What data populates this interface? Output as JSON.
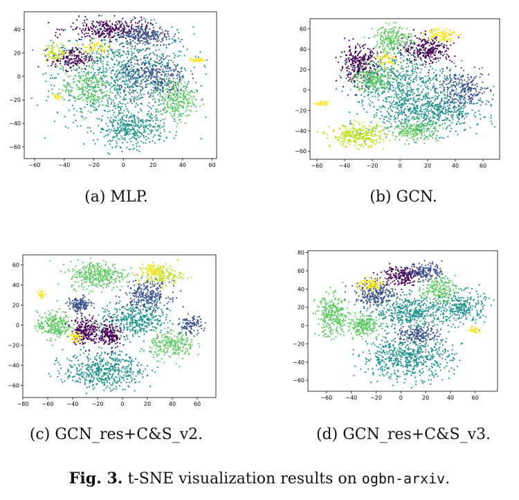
{
  "figure": {
    "number": "Fig. 3.",
    "text": " t-SNE visualization results on ",
    "dataset": "ogbn-arxiv",
    "end": "."
  },
  "palette": [
    "#440154",
    "#3b528b",
    "#21918c",
    "#5ec962",
    "#bddf26",
    "#fde725"
  ],
  "chart_data": [
    {
      "type": "scatter",
      "caption": "(a) MLP.",
      "xlim": [
        -67,
        63
      ],
      "ylim": [
        -70,
        55
      ],
      "xticks": [
        -60,
        -40,
        -20,
        0,
        20,
        40,
        60
      ],
      "yticks": [
        -60,
        -40,
        -20,
        0,
        20,
        40
      ],
      "grid": false,
      "clusters": [
        {
          "x": 0,
          "y": 0,
          "rx": 52,
          "ry": 46,
          "class": 2,
          "n": 900
        },
        {
          "x": 5,
          "y": -45,
          "rx": 25,
          "ry": 16,
          "class": 2,
          "n": 350
        },
        {
          "x": -10,
          "y": 40,
          "rx": 30,
          "ry": 10,
          "class": 0,
          "n": 280
        },
        {
          "x": -35,
          "y": 15,
          "rx": 15,
          "ry": 10,
          "class": 0,
          "n": 160
        },
        {
          "x": 15,
          "y": 35,
          "rx": 20,
          "ry": 10,
          "class": 1,
          "n": 220
        },
        {
          "x": 35,
          "y": -20,
          "rx": 15,
          "ry": 20,
          "class": 3,
          "n": 260
        },
        {
          "x": -25,
          "y": -10,
          "rx": 18,
          "ry": 20,
          "class": 3,
          "n": 240
        },
        {
          "x": -45,
          "y": 20,
          "rx": 10,
          "ry": 8,
          "class": 4,
          "n": 80
        },
        {
          "x": 50,
          "y": 14,
          "rx": 6,
          "ry": 2,
          "class": 5,
          "n": 40
        },
        {
          "x": -20,
          "y": 25,
          "rx": 10,
          "ry": 6,
          "class": 5,
          "n": 60
        },
        {
          "x": 20,
          "y": 0,
          "rx": 25,
          "ry": 20,
          "class": 1,
          "n": 300
        },
        {
          "x": -45,
          "y": -18,
          "rx": 4,
          "ry": 3,
          "class": 5,
          "n": 25
        }
      ]
    },
    {
      "type": "scatter",
      "caption": "(b) GCN.",
      "xlim": [
        -65,
        72
      ],
      "ylim": [
        -68,
        70
      ],
      "xticks": [
        -60,
        -40,
        -20,
        0,
        20,
        40,
        60
      ],
      "yticks": [
        -60,
        -40,
        -20,
        0,
        20,
        40,
        60
      ],
      "grid": false,
      "clusters": [
        {
          "x": 20,
          "y": -20,
          "rx": 45,
          "ry": 25,
          "class": 2,
          "n": 650
        },
        {
          "x": 0,
          "y": 10,
          "rx": 40,
          "ry": 30,
          "class": 2,
          "n": 500
        },
        {
          "x": -30,
          "y": 25,
          "rx": 15,
          "ry": 20,
          "class": 0,
          "n": 280
        },
        {
          "x": 20,
          "y": 40,
          "rx": 20,
          "ry": 15,
          "class": 0,
          "n": 260
        },
        {
          "x": -30,
          "y": -45,
          "rx": 22,
          "ry": 12,
          "class": 4,
          "n": 300
        },
        {
          "x": -5,
          "y": 50,
          "rx": 15,
          "ry": 15,
          "class": 3,
          "n": 220
        },
        {
          "x": 45,
          "y": 0,
          "rx": 22,
          "ry": 20,
          "class": 1,
          "n": 250
        },
        {
          "x": 30,
          "y": 55,
          "rx": 12,
          "ry": 8,
          "class": 5,
          "n": 100
        },
        {
          "x": -20,
          "y": 10,
          "rx": 15,
          "ry": 15,
          "class": 3,
          "n": 200
        },
        {
          "x": -57,
          "y": -13,
          "rx": 5,
          "ry": 2,
          "class": 5,
          "n": 40
        },
        {
          "x": 10,
          "y": -40,
          "rx": 20,
          "ry": 12,
          "class": 3,
          "n": 200
        },
        {
          "x": -10,
          "y": 30,
          "rx": 10,
          "ry": 8,
          "class": 5,
          "n": 60
        }
      ]
    },
    {
      "type": "scatter",
      "caption": "(c) GCN_res+C&S_v2.",
      "xlim": [
        -80,
        75
      ],
      "ylim": [
        -72,
        70
      ],
      "xticks": [
        -80,
        -60,
        -40,
        -20,
        0,
        20,
        40,
        60
      ],
      "yticks": [
        -60,
        -40,
        -20,
        0,
        20,
        40,
        60
      ],
      "grid": false,
      "clusters": [
        {
          "x": -15,
          "y": -45,
          "rx": 35,
          "ry": 20,
          "class": 2,
          "n": 500
        },
        {
          "x": 10,
          "y": 5,
          "rx": 30,
          "ry": 20,
          "class": 2,
          "n": 400
        },
        {
          "x": -20,
          "y": 50,
          "rx": 25,
          "ry": 15,
          "class": 3,
          "n": 350
        },
        {
          "x": 30,
          "y": 50,
          "rx": 20,
          "ry": 12,
          "class": 4,
          "n": 180
        },
        {
          "x": -55,
          "y": 0,
          "rx": 15,
          "ry": 15,
          "class": 3,
          "n": 250
        },
        {
          "x": -30,
          "y": -5,
          "rx": 12,
          "ry": 15,
          "class": 0,
          "n": 220
        },
        {
          "x": 40,
          "y": -20,
          "rx": 20,
          "ry": 15,
          "class": 3,
          "n": 250
        },
        {
          "x": 20,
          "y": 30,
          "rx": 20,
          "ry": 15,
          "class": 1,
          "n": 250
        },
        {
          "x": -35,
          "y": 20,
          "rx": 10,
          "ry": 8,
          "class": 1,
          "n": 150
        },
        {
          "x": -10,
          "y": -10,
          "rx": 10,
          "ry": 15,
          "class": 0,
          "n": 180
        },
        {
          "x": 55,
          "y": 0,
          "rx": 10,
          "ry": 10,
          "class": 1,
          "n": 100
        },
        {
          "x": -37,
          "y": -12,
          "rx": 5,
          "ry": 5,
          "class": 5,
          "n": 50
        },
        {
          "x": 25,
          "y": 55,
          "rx": 8,
          "ry": 6,
          "class": 5,
          "n": 60
        },
        {
          "x": -65,
          "y": 30,
          "rx": 3,
          "ry": 5,
          "class": 5,
          "n": 25
        }
      ]
    },
    {
      "type": "scatter",
      "caption": "(d) GCN_res+C&S_v3.",
      "xlim": [
        -75,
        78
      ],
      "ylim": [
        -72,
        82
      ],
      "xticks": [
        -60,
        -40,
        -20,
        0,
        20,
        40,
        60
      ],
      "yticks": [
        -60,
        -40,
        -20,
        0,
        20,
        40,
        60,
        80
      ],
      "grid": false,
      "clusters": [
        {
          "x": 5,
          "y": -35,
          "rx": 40,
          "ry": 25,
          "class": 2,
          "n": 600
        },
        {
          "x": 10,
          "y": 15,
          "rx": 35,
          "ry": 20,
          "class": 2,
          "n": 450
        },
        {
          "x": -55,
          "y": 10,
          "rx": 15,
          "ry": 25,
          "class": 3,
          "n": 300
        },
        {
          "x": -20,
          "y": 35,
          "rx": 18,
          "ry": 15,
          "class": 1,
          "n": 250
        },
        {
          "x": 0,
          "y": 55,
          "rx": 18,
          "ry": 12,
          "class": 0,
          "n": 200
        },
        {
          "x": -25,
          "y": 45,
          "rx": 12,
          "ry": 8,
          "class": 5,
          "n": 100
        },
        {
          "x": 50,
          "y": 20,
          "rx": 20,
          "ry": 20,
          "class": 2,
          "n": 250
        },
        {
          "x": -30,
          "y": 0,
          "rx": 15,
          "ry": 12,
          "class": 3,
          "n": 220
        },
        {
          "x": 30,
          "y": 40,
          "rx": 15,
          "ry": 15,
          "class": 3,
          "n": 180
        },
        {
          "x": 60,
          "y": -5,
          "rx": 5,
          "ry": 4,
          "class": 5,
          "n": 30
        },
        {
          "x": 20,
          "y": 60,
          "rx": 15,
          "ry": 10,
          "class": 1,
          "n": 150
        },
        {
          "x": 15,
          "y": -10,
          "rx": 20,
          "ry": 10,
          "class": 1,
          "n": 180
        }
      ]
    }
  ]
}
